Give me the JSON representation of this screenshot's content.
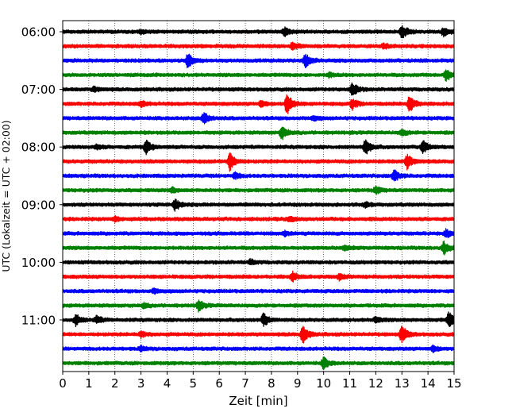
{
  "chart_data": {
    "type": "line",
    "title": "",
    "xlabel": "Zeit  [min]",
    "ylabel": "UTC (Lokalzeit = UTC + 02:00)",
    "xlim": [
      0,
      15
    ],
    "x_ticks": [
      "0",
      "1",
      "2",
      "3",
      "4",
      "5",
      "6",
      "7",
      "8",
      "9",
      "10",
      "11",
      "12",
      "13",
      "14",
      "15"
    ],
    "y_ticks": [
      "06:00",
      "07:00",
      "08:00",
      "09:00",
      "10:00",
      "11:00"
    ],
    "grid": "vertical dotted",
    "legend": "none",
    "colors": [
      "#000000",
      "#ff0000",
      "#0000ff",
      "#008000"
    ],
    "traces": [
      {
        "start": "06:00",
        "color": "#000000",
        "events": [
          {
            "t": 13.0,
            "a": 1.0
          },
          {
            "t": 8.5,
            "a": 0.6
          },
          {
            "t": 14.6,
            "a": 0.6
          },
          {
            "t": 3.0,
            "a": 0.3
          }
        ]
      },
      {
        "start": "06:15",
        "color": "#ff0000",
        "events": [
          {
            "t": 8.8,
            "a": 0.5
          },
          {
            "t": 12.3,
            "a": 0.3
          }
        ]
      },
      {
        "start": "06:30",
        "color": "#0000ff",
        "events": [
          {
            "t": 4.8,
            "a": 1.0
          },
          {
            "t": 9.3,
            "a": 0.9
          }
        ]
      },
      {
        "start": "06:45",
        "color": "#008000",
        "events": [
          {
            "t": 14.7,
            "a": 0.8
          },
          {
            "t": 10.2,
            "a": 0.3
          }
        ]
      },
      {
        "start": "07:00",
        "color": "#000000",
        "events": [
          {
            "t": 11.1,
            "a": 1.0
          },
          {
            "t": 1.2,
            "a": 0.3
          }
        ]
      },
      {
        "start": "07:15",
        "color": "#ff0000",
        "events": [
          {
            "t": 8.6,
            "a": 1.6
          },
          {
            "t": 13.3,
            "a": 1.2
          },
          {
            "t": 11.1,
            "a": 0.7
          },
          {
            "t": 7.6,
            "a": 0.4
          },
          {
            "t": 3.0,
            "a": 0.4
          }
        ]
      },
      {
        "start": "07:30",
        "color": "#0000ff",
        "events": [
          {
            "t": 5.4,
            "a": 0.8
          },
          {
            "t": 9.6,
            "a": 0.3
          }
        ]
      },
      {
        "start": "07:45",
        "color": "#008000",
        "events": [
          {
            "t": 8.4,
            "a": 0.9
          },
          {
            "t": 13.0,
            "a": 0.4
          }
        ]
      },
      {
        "start": "08:00",
        "color": "#000000",
        "events": [
          {
            "t": 3.2,
            "a": 0.9
          },
          {
            "t": 11.6,
            "a": 1.1
          },
          {
            "t": 13.8,
            "a": 1.0
          },
          {
            "t": 1.3,
            "a": 0.3
          }
        ]
      },
      {
        "start": "08:15",
        "color": "#ff0000",
        "events": [
          {
            "t": 6.4,
            "a": 1.3
          },
          {
            "t": 13.2,
            "a": 1.0
          }
        ]
      },
      {
        "start": "08:30",
        "color": "#0000ff",
        "events": [
          {
            "t": 12.7,
            "a": 0.8
          },
          {
            "t": 6.6,
            "a": 0.4
          }
        ]
      },
      {
        "start": "08:45",
        "color": "#008000",
        "events": [
          {
            "t": 12.0,
            "a": 0.5
          },
          {
            "t": 4.2,
            "a": 0.3
          }
        ]
      },
      {
        "start": "09:00",
        "color": "#000000",
        "events": [
          {
            "t": 4.3,
            "a": 0.8
          },
          {
            "t": 11.6,
            "a": 0.3
          }
        ]
      },
      {
        "start": "09:15",
        "color": "#ff0000",
        "events": [
          {
            "t": 2.0,
            "a": 0.3
          },
          {
            "t": 8.7,
            "a": 0.3
          }
        ]
      },
      {
        "start": "09:30",
        "color": "#0000ff",
        "events": [
          {
            "t": 14.7,
            "a": 0.6
          },
          {
            "t": 8.5,
            "a": 0.3
          }
        ]
      },
      {
        "start": "09:45",
        "color": "#008000",
        "events": [
          {
            "t": 14.6,
            "a": 0.9
          },
          {
            "t": 10.8,
            "a": 0.3
          }
        ]
      },
      {
        "start": "10:00",
        "color": "#000000",
        "events": [
          {
            "t": 7.2,
            "a": 0.3
          }
        ]
      },
      {
        "start": "10:15",
        "color": "#ff0000",
        "events": [
          {
            "t": 8.8,
            "a": 0.6
          },
          {
            "t": 10.6,
            "a": 0.4
          }
        ]
      },
      {
        "start": "10:30",
        "color": "#0000ff",
        "events": [
          {
            "t": 3.5,
            "a": 0.3
          }
        ]
      },
      {
        "start": "10:45",
        "color": "#008000",
        "events": [
          {
            "t": 5.2,
            "a": 0.7
          },
          {
            "t": 3.1,
            "a": 0.3
          }
        ]
      },
      {
        "start": "11:00",
        "color": "#000000",
        "events": [
          {
            "t": 0.5,
            "a": 0.7
          },
          {
            "t": 1.3,
            "a": 0.5
          },
          {
            "t": 7.7,
            "a": 0.9
          },
          {
            "t": 14.8,
            "a": 1.1
          },
          {
            "t": 12.0,
            "a": 0.4
          }
        ]
      },
      {
        "start": "11:15",
        "color": "#ff0000",
        "events": [
          {
            "t": 9.2,
            "a": 1.2
          },
          {
            "t": 13.0,
            "a": 1.2
          },
          {
            "t": 3.0,
            "a": 0.4
          }
        ]
      },
      {
        "start": "11:30",
        "color": "#0000ff",
        "events": [
          {
            "t": 14.2,
            "a": 0.4
          },
          {
            "t": 3.0,
            "a": 0.3
          }
        ]
      },
      {
        "start": "11:45",
        "color": "#008000",
        "events": [
          {
            "t": 10.0,
            "a": 0.8
          }
        ]
      }
    ]
  }
}
